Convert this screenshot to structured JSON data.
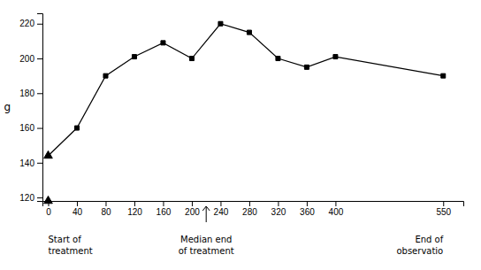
{
  "chart_data": {
    "type": "line",
    "x": [
      0,
      40,
      80,
      120,
      160,
      200,
      240,
      280,
      320,
      360,
      400,
      550
    ],
    "values": [
      144,
      160,
      190,
      201,
      209,
      200,
      220,
      215,
      200,
      195,
      201,
      190
    ],
    "xlim": [
      -8,
      578
    ],
    "ylim": [
      118,
      226
    ],
    "xticks": [
      0,
      40,
      80,
      120,
      160,
      200,
      240,
      280,
      320,
      360,
      400,
      550
    ],
    "yticks": [
      120,
      140,
      160,
      180,
      200,
      220
    ],
    "ylabel": "g",
    "color": "#000000",
    "marker": "square",
    "grid": false,
    "annotations": [
      {
        "type": "text",
        "x": 0,
        "lines": [
          "Start of",
          "treatment"
        ]
      },
      {
        "type": "arrow",
        "x": 220,
        "lines": [
          "Median end",
          "of treatment"
        ]
      },
      {
        "type": "text",
        "x": 550,
        "lines": [
          "End of",
          "observatio"
        ]
      }
    ]
  }
}
